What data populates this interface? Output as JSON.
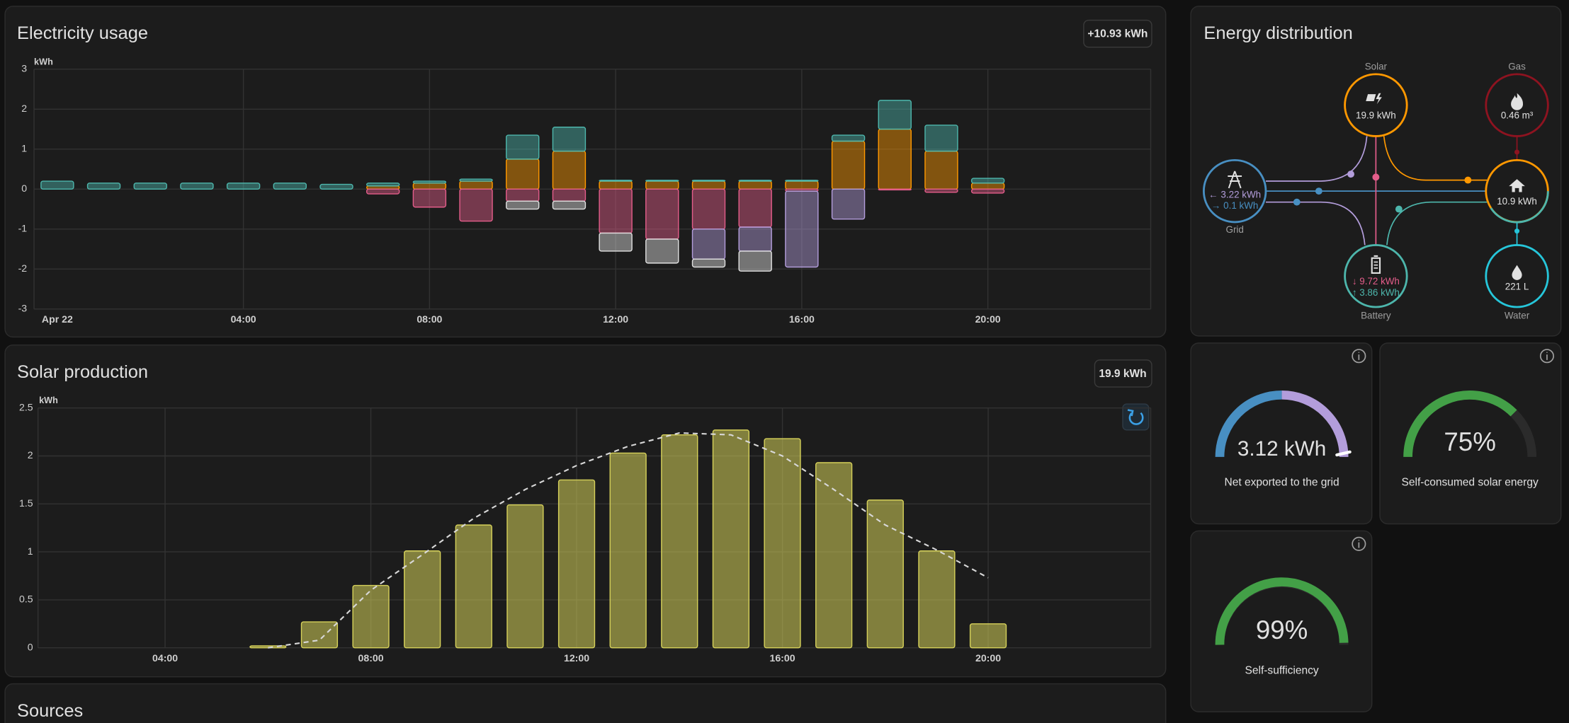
{
  "chart_data": [
    {
      "type": "bar",
      "title": "Electricity usage",
      "total": "+10.93 kWh",
      "y_unit": "kWh",
      "categories": [
        "Apr 22",
        null,
        null,
        null,
        "04:00",
        null,
        null,
        null,
        "08:00",
        null,
        null,
        null,
        "12:00",
        null,
        null,
        null,
        "16:00",
        null,
        null,
        null,
        "20:00",
        null,
        null,
        null
      ],
      "series": [
        {
          "color": "#ff9800",
          "values": [
            0,
            0,
            0,
            0,
            0,
            0,
            0,
            0.08,
            0.15,
            0.2,
            0.75,
            0.95,
            0.2,
            0.2,
            0.2,
            0.2,
            0.2,
            1.2,
            1.5,
            0.95,
            0.15,
            null,
            null,
            null
          ]
        },
        {
          "color": "#4db6ac",
          "values": [
            0.2,
            0.15,
            0.15,
            0.15,
            0.15,
            0.15,
            0.12,
            0.07,
            0.05,
            0.05,
            0.6,
            0.6,
            0.02,
            0.02,
            0.02,
            0.02,
            0.02,
            0.15,
            0.72,
            0.65,
            0.12,
            null,
            null,
            null
          ]
        },
        {
          "color": "#e35d8a",
          "values": [
            0,
            0,
            0,
            0,
            0,
            0,
            0,
            -0.12,
            -0.45,
            -0.8,
            -0.3,
            -0.3,
            -1.1,
            -1.25,
            -1.0,
            -0.95,
            -0.05,
            0,
            -0.02,
            -0.08,
            -0.1,
            null,
            null,
            null
          ]
        },
        {
          "color": "#b39ddb",
          "values": [
            0,
            0,
            0,
            0,
            0,
            0,
            0,
            0,
            0,
            0,
            0,
            0,
            0,
            0,
            -0.75,
            -0.6,
            -1.9,
            -0.75,
            0,
            0,
            0,
            null,
            null,
            null
          ]
        },
        {
          "color": "#e0e0e0",
          "values": [
            0,
            0,
            0,
            0,
            0,
            0,
            0,
            0,
            0,
            0,
            -0.2,
            -0.2,
            -0.45,
            -0.6,
            -0.2,
            -0.5,
            0,
            0,
            0,
            0,
            0,
            null,
            null,
            null
          ]
        }
      ],
      "ylim": [
        -3,
        3
      ],
      "yticks": [
        -3,
        -2,
        -1,
        0,
        1,
        2,
        3
      ],
      "grid": true
    },
    {
      "type": "bar",
      "title": "Solar production",
      "total": "19.9 kWh",
      "y_unit": "kWh",
      "x": [
        6,
        7,
        8,
        9,
        10,
        11,
        12,
        13,
        14,
        15,
        16,
        17,
        18,
        19,
        20
      ],
      "series": [
        {
          "color": "#d6d15a",
          "values": [
            0.02,
            0.27,
            0.65,
            1.01,
            1.28,
            1.49,
            1.75,
            2.03,
            2.22,
            2.27,
            2.18,
            1.93,
            1.54,
            1.01,
            0.25
          ]
        },
        {
          "type": "line",
          "dashed": true,
          "color": "#d8d8d8",
          "values": [
            0.0,
            0.08,
            0.6,
            0.97,
            1.35,
            1.65,
            1.9,
            2.1,
            2.24,
            2.22,
            2.0,
            1.65,
            1.28,
            1.02,
            0.73
          ]
        }
      ],
      "xlim": [
        1.53,
        23.16
      ],
      "xticks": [
        {
          "value": 4,
          "label": "04:00"
        },
        {
          "value": 8,
          "label": "08:00"
        },
        {
          "value": 12,
          "label": "12:00"
        },
        {
          "value": 16,
          "label": "16:00"
        },
        {
          "value": 20,
          "label": "20:00"
        }
      ],
      "ylim": [
        0,
        2.5
      ],
      "yticks": [
        0,
        0.5,
        1,
        1.5,
        2,
        2.5
      ],
      "grid": true
    }
  ],
  "energy_distribution": {
    "title": "Energy distribution",
    "solar": {
      "label": "Solar",
      "value": "19.9 kWh"
    },
    "gas": {
      "label": "Gas",
      "value": "0.46 m³"
    },
    "grid": {
      "label": "Grid",
      "values": [
        "← 3.22 kWh",
        "→ 0.1 kWh"
      ]
    },
    "home": {
      "value": "10.9 kWh"
    },
    "battery": {
      "label": "Battery",
      "values": [
        "↓ 9.72 kWh",
        "↑ 3.86 kWh"
      ]
    },
    "water": {
      "label": "Water",
      "value": "221 L"
    }
  },
  "gauges": [
    {
      "value": "3.12 kWh",
      "caption": "Net exported to the grid"
    },
    {
      "value": "75%",
      "caption": "Self-consumed solar energy"
    },
    {
      "value": "99%",
      "caption": "Self-sufficiency"
    }
  ],
  "sources": {
    "title": "Sources"
  }
}
